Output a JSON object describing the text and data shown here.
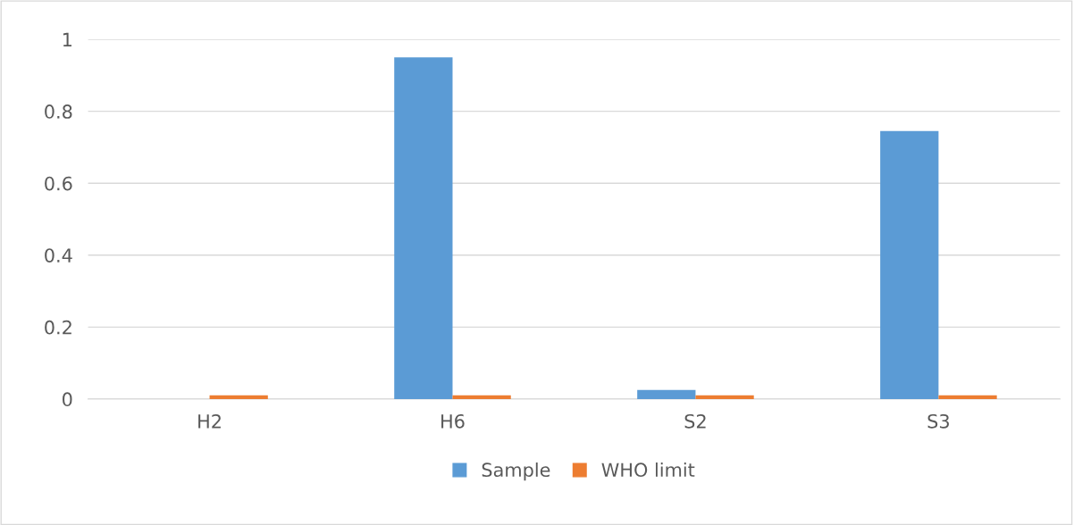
{
  "chart_data": {
    "type": "bar",
    "categories": [
      "H2",
      "H6",
      "S2",
      "S3"
    ],
    "series": [
      {
        "name": "Sample",
        "color": "#5b9bd5",
        "values": [
          0,
          0.95,
          0.025,
          0.745
        ]
      },
      {
        "name": "WHO limit",
        "color": "#ed7d31",
        "values": [
          0.01,
          0.01,
          0.01,
          0.01
        ]
      }
    ],
    "ylim": [
      0,
      1
    ],
    "yticks": [
      0,
      0.2,
      0.4,
      0.6,
      0.8,
      1
    ],
    "grid": "y",
    "legend": "bottom"
  }
}
